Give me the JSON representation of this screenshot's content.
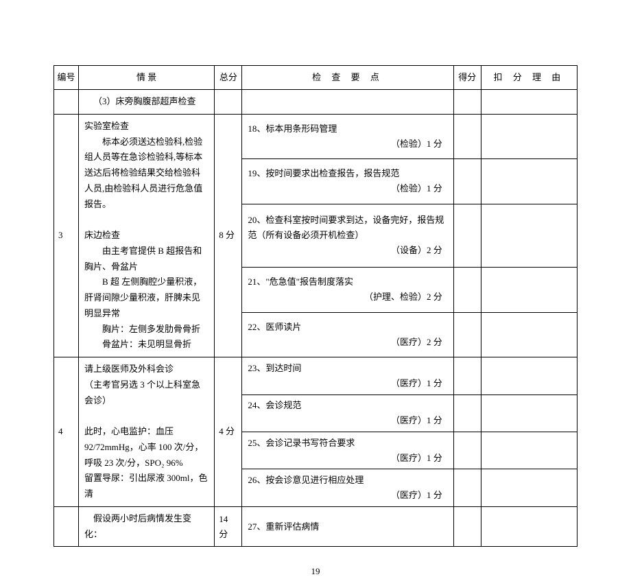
{
  "headers": {
    "num": "编号",
    "scene": "情 景",
    "total": "总分",
    "check": "检 查 要 点",
    "score": "得分",
    "reason": "扣 分 理 由"
  },
  "row_prev_scene": "（3）床旁胸腹部超声检查",
  "row3": {
    "num": "3",
    "total": "8 分",
    "scene_p1": "实验室检查",
    "scene_p2": "标本必须送达检验科,检验组人员等在急诊检验科,等标本送达后将检验结果交给检验科人员,由检验科人员进行危急值报告。",
    "scene_p3": "床边检查",
    "scene_p4": "由主考官提供 B 超报告和胸片、骨盆片",
    "scene_p5": "B 超 左侧胸腔少量积液，肝肾间隙少量积液，肝脾未见明显异常",
    "scene_p6": "胸片：左侧多发肋骨骨折",
    "scene_p7": "骨盆片：未见明显骨折",
    "checks": [
      {
        "t": "18、标本用条形码管理",
        "p": "（检验）1 分"
      },
      {
        "t": "19、按时间要求出检查报告，报告规范",
        "p": "（检验）1 分"
      },
      {
        "t": "20、检查科室按时间要求到达，设备完好，报告规范（所有设备必须开机检查）",
        "p": "（设备）2 分"
      },
      {
        "t": "21、\"危急值\"报告制度落实",
        "p": "（护理、检验）2 分"
      },
      {
        "t": "22、医师读片",
        "p": "（医疗）2 分"
      }
    ]
  },
  "row4": {
    "num": "4",
    "total": "4 分",
    "scene_p1": "请上级医师及外科会诊",
    "scene_p2": "（主考官另选 3 个以上科室急会诊）",
    "scene_p3": "此时，心电监护：血压 92/72mmHg，心率 100 次/分，呼吸 23 次/分，SPO₂ 96%",
    "scene_p4": "留置导尿：引出尿液 300ml，色清",
    "checks": [
      {
        "t": "23、到达时间",
        "p": "（医疗）1 分"
      },
      {
        "t": "24、会诊规范",
        "p": "（医疗）1 分"
      },
      {
        "t": "25、会诊记录书写符合要求",
        "p": "（医疗）1 分"
      },
      {
        "t": "26、按会诊意见进行相应处理",
        "p": "（医疗）1 分"
      }
    ]
  },
  "row_last": {
    "scene": "假设两小时后病情发生变化：",
    "total": "14 分",
    "check": "27、重新评估病情"
  },
  "page_number": "19"
}
